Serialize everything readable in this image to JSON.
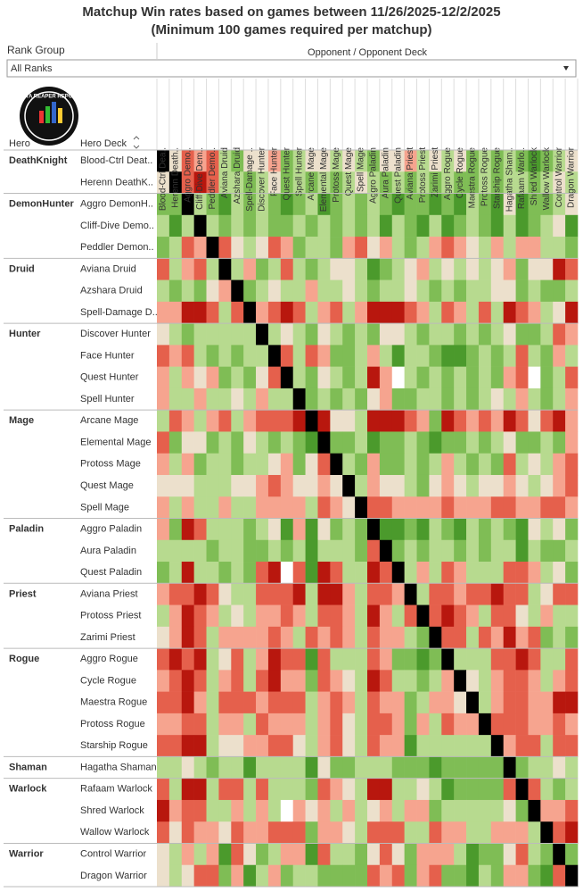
{
  "chart_data": {
    "type": "heatmap",
    "title": "Matchup Win rates based on games between 11/26/2025-12/2/2025",
    "subtitle": "(Minimum 100 games required per matchup)",
    "filter": {
      "label": "Rank Group",
      "value": "All Ranks"
    },
    "x_label": "Opponent / Opponent Deck",
    "logo_text": "DATA REAPER REPORT",
    "row_headers": [
      "Hero",
      "Hero Deck"
    ],
    "x": [
      "Blood-Ctrl Dea..",
      "Herenn Death..",
      "Aggro Demo..",
      "Cliff-Dive Dem..",
      "Peddler Demo..",
      "Aviana Druid",
      "Azshara Druid",
      "Spell-Damage ..",
      "Discover Hunter",
      "Face Hunter",
      "Quest Hunter",
      "Spell Hunter",
      "Arcane Mage",
      "Elemental Mage",
      "Protoss Mage",
      "Quest Mage",
      "Spell Mage",
      "Aggro Paladin",
      "Aura Paladin",
      "Quest Paladin",
      "Aviana Priest",
      "Protoss Priest",
      "Zarimi Priest",
      "Aggro Rogue",
      "Cycle Rogue",
      "Maestra Rogue",
      "Protoss Rogue",
      "Starship Rogue",
      "Hagatha Sham..",
      "Rafaam Warlo..",
      "Shred Warlock",
      "Wallow Warlock",
      "Control Warrior",
      "Dragon Warrior"
    ],
    "heroes": [
      {
        "name": "DeathKnight",
        "decks": [
          "Blood-Ctrl Deat..",
          "Herenn DeathK.."
        ]
      },
      {
        "name": "DemonHunter",
        "decks": [
          "Aggro DemonH..",
          "Cliff-Dive Demo..",
          "Peddler Demon.."
        ]
      },
      {
        "name": "Druid",
        "decks": [
          "Aviana Druid",
          "Azshara Druid",
          "Spell-Damage D.."
        ]
      },
      {
        "name": "Hunter",
        "decks": [
          "Discover Hunter",
          "Face Hunter",
          "Quest Hunter",
          "Spell Hunter"
        ]
      },
      {
        "name": "Mage",
        "decks": [
          "Arcane Mage",
          "Elemental Mage",
          "Protoss Mage",
          "Quest Mage",
          "Spell Mage"
        ]
      },
      {
        "name": "Paladin",
        "decks": [
          "Aggro Paladin",
          "Aura Paladin",
          "Quest Paladin"
        ]
      },
      {
        "name": "Priest",
        "decks": [
          "Aviana Priest",
          "Protoss Priest",
          "Zarimi Priest"
        ]
      },
      {
        "name": "Rogue",
        "decks": [
          "Aggro Rogue",
          "Cycle Rogue",
          "Maestra Rogue",
          "Protoss Rogue",
          "Starship Rogue"
        ]
      },
      {
        "name": "Shaman",
        "decks": [
          "Hagatha Shaman"
        ]
      },
      {
        "name": "Warlock",
        "decks": [
          "Rafaam Warlock",
          "Shred Warlock",
          "Wallow Warlock"
        ]
      },
      {
        "name": "Warrior",
        "decks": [
          "Control Warrior",
          "Dragon Warrior"
        ]
      }
    ],
    "values": [
      [
        null,
        50,
        44,
        47,
        44,
        53,
        57,
        50,
        50,
        47,
        57,
        53,
        50,
        50,
        53,
        50,
        53,
        57,
        50,
        50,
        47,
        53,
        50,
        53,
        50,
        57,
        53,
        57,
        53,
        57,
        62,
        57,
        53,
        50
      ],
      [
        50,
        null,
        44,
        38,
        44,
        53,
        53,
        57,
        53,
        50,
        57,
        53,
        57,
        53,
        57,
        53,
        50,
        53,
        57,
        53,
        57,
        53,
        57,
        53,
        57,
        57,
        53,
        57,
        53,
        53,
        57,
        53,
        50,
        53
      ],
      [
        57,
        57,
        null,
        53,
        57,
        62,
        53,
        57,
        53,
        57,
        62,
        57,
        53,
        62,
        57,
        53,
        57,
        53,
        57,
        62,
        57,
        57,
        62,
        57,
        62,
        53,
        57,
        62,
        50,
        62,
        57,
        57,
        53,
        50
      ],
      [
        53,
        62,
        53,
        null,
        53,
        57,
        53,
        57,
        53,
        57,
        57,
        53,
        57,
        53,
        57,
        53,
        57,
        53,
        62,
        53,
        57,
        62,
        53,
        62,
        57,
        53,
        57,
        62,
        53,
        62,
        57,
        53,
        50,
        62
      ],
      [
        57,
        53,
        44,
        47,
        null,
        44,
        50,
        53,
        50,
        44,
        47,
        57,
        53,
        53,
        57,
        47,
        44,
        50,
        47,
        53,
        57,
        53,
        47,
        44,
        47,
        50,
        53,
        47,
        53,
        47,
        47,
        53,
        53,
        57
      ],
      [
        44,
        53,
        47,
        44,
        53,
        null,
        53,
        47,
        57,
        53,
        44,
        53,
        57,
        53,
        50,
        50,
        53,
        62,
        57,
        53,
        50,
        47,
        53,
        50,
        53,
        50,
        53,
        50,
        47,
        57,
        50,
        50,
        38,
        44
      ],
      [
        53,
        57,
        53,
        57,
        50,
        47,
        null,
        57,
        53,
        50,
        53,
        53,
        47,
        53,
        53,
        50,
        53,
        57,
        53,
        53,
        50,
        53,
        57,
        53,
        57,
        53,
        53,
        50,
        50,
        57,
        53,
        57,
        57,
        53
      ],
      [
        47,
        47,
        38,
        38,
        44,
        53,
        44,
        null,
        47,
        44,
        38,
        44,
        53,
        47,
        44,
        53,
        47,
        38,
        38,
        38,
        44,
        47,
        53,
        44,
        47,
        53,
        44,
        53,
        38,
        44,
        47,
        53,
        50,
        38
      ],
      [
        50,
        53,
        57,
        53,
        53,
        53,
        53,
        53,
        null,
        53,
        50,
        53,
        57,
        50,
        53,
        57,
        53,
        57,
        50,
        50,
        53,
        57,
        53,
        53,
        57,
        53,
        57,
        53,
        50,
        57,
        57,
        53,
        44,
        47
      ],
      [
        44,
        47,
        44,
        53,
        57,
        53,
        57,
        53,
        53,
        null,
        44,
        53,
        44,
        47,
        57,
        57,
        53,
        47,
        53,
        62,
        53,
        53,
        57,
        62,
        62,
        57,
        53,
        57,
        53,
        44,
        53,
        57,
        47,
        53
      ],
      [
        47,
        53,
        47,
        50,
        47,
        57,
        53,
        57,
        50,
        44,
        null,
        53,
        57,
        50,
        53,
        57,
        53,
        38,
        47,
        null,
        53,
        57,
        53,
        57,
        53,
        57,
        53,
        57,
        47,
        44,
        null,
        57,
        53,
        44
      ],
      [
        47,
        53,
        53,
        47,
        53,
        53,
        50,
        53,
        47,
        53,
        53,
        null,
        57,
        53,
        57,
        53,
        57,
        50,
        47,
        57,
        57,
        53,
        53,
        57,
        53,
        57,
        53,
        50,
        53,
        47,
        53,
        57,
        53,
        47
      ],
      [
        53,
        44,
        47,
        53,
        47,
        44,
        53,
        47,
        44,
        44,
        44,
        38,
        null,
        38,
        50,
        50,
        53,
        38,
        38,
        38,
        44,
        47,
        57,
        38,
        44,
        47,
        44,
        47,
        38,
        44,
        50,
        44,
        38,
        47
      ],
      [
        44,
        57,
        50,
        50,
        57,
        53,
        57,
        50,
        53,
        57,
        53,
        57,
        62,
        null,
        57,
        57,
        53,
        62,
        57,
        57,
        53,
        57,
        62,
        57,
        57,
        53,
        57,
        53,
        50,
        57,
        57,
        53,
        57,
        47
      ],
      [
        47,
        53,
        47,
        57,
        53,
        53,
        57,
        53,
        53,
        50,
        47,
        57,
        50,
        44,
        null,
        53,
        57,
        47,
        57,
        57,
        53,
        57,
        53,
        47,
        53,
        57,
        53,
        57,
        44,
        53,
        50,
        53,
        47,
        44
      ],
      [
        50,
        50,
        50,
        53,
        53,
        53,
        50,
        50,
        47,
        44,
        47,
        50,
        50,
        47,
        50,
        null,
        53,
        47,
        50,
        50,
        53,
        57,
        50,
        47,
        50,
        53,
        50,
        50,
        47,
        50,
        53,
        50,
        47,
        44
      ],
      [
        47,
        53,
        47,
        53,
        53,
        47,
        53,
        53,
        47,
        47,
        47,
        47,
        53,
        44,
        47,
        50,
        null,
        44,
        44,
        47,
        47,
        47,
        47,
        44,
        47,
        47,
        47,
        44,
        44,
        47,
        47,
        44,
        44,
        47
      ],
      [
        47,
        57,
        38,
        44,
        53,
        53,
        53,
        57,
        53,
        50,
        62,
        47,
        62,
        50,
        57,
        53,
        57,
        null,
        62,
        62,
        57,
        62,
        53,
        57,
        62,
        53,
        57,
        53,
        57,
        62,
        50,
        53,
        50,
        57
      ],
      [
        53,
        53,
        53,
        53,
        57,
        53,
        53,
        57,
        57,
        53,
        57,
        53,
        62,
        53,
        53,
        53,
        57,
        44,
        null,
        57,
        53,
        57,
        53,
        53,
        57,
        53,
        57,
        53,
        53,
        62,
        53,
        57,
        57,
        53
      ],
      [
        57,
        53,
        38,
        53,
        53,
        57,
        53,
        57,
        44,
        38,
        null,
        44,
        62,
        38,
        44,
        53,
        53,
        38,
        44,
        null,
        53,
        47,
        53,
        44,
        47,
        53,
        53,
        53,
        44,
        44,
        47,
        53,
        50,
        57
      ],
      [
        47,
        44,
        44,
        38,
        44,
        50,
        53,
        53,
        44,
        44,
        44,
        38,
        53,
        38,
        38,
        47,
        53,
        44,
        44,
        47,
        null,
        53,
        44,
        44,
        47,
        44,
        44,
        38,
        44,
        44,
        53,
        50,
        44,
        44
      ],
      [
        53,
        47,
        38,
        44,
        47,
        53,
        50,
        53,
        47,
        47,
        44,
        47,
        53,
        44,
        44,
        47,
        53,
        38,
        47,
        53,
        44,
        null,
        44,
        38,
        44,
        47,
        53,
        44,
        44,
        50,
        53,
        47,
        53,
        53
      ],
      [
        50,
        47,
        38,
        44,
        53,
        47,
        47,
        47,
        47,
        44,
        47,
        53,
        44,
        47,
        44,
        47,
        53,
        44,
        47,
        47,
        53,
        57,
        null,
        44,
        44,
        53,
        44,
        47,
        38,
        47,
        44,
        57,
        53,
        57
      ],
      [
        44,
        38,
        44,
        38,
        53,
        50,
        44,
        53,
        47,
        38,
        44,
        44,
        62,
        44,
        53,
        53,
        53,
        44,
        47,
        57,
        57,
        62,
        57,
        null,
        53,
        53,
        53,
        44,
        44,
        38,
        44,
        53,
        53,
        44
      ],
      [
        47,
        44,
        38,
        44,
        53,
        47,
        44,
        53,
        44,
        38,
        47,
        47,
        57,
        44,
        47,
        50,
        53,
        38,
        44,
        53,
        53,
        57,
        53,
        47,
        null,
        50,
        53,
        47,
        44,
        44,
        47,
        53,
        47,
        44
      ],
      [
        44,
        44,
        38,
        47,
        53,
        44,
        44,
        44,
        47,
        44,
        44,
        44,
        53,
        47,
        44,
        47,
        53,
        44,
        47,
        47,
        57,
        53,
        47,
        47,
        50,
        null,
        53,
        47,
        44,
        44,
        47,
        47,
        38,
        38
      ],
      [
        47,
        47,
        44,
        44,
        53,
        47,
        47,
        53,
        44,
        47,
        47,
        47,
        53,
        47,
        44,
        50,
        53,
        44,
        44,
        47,
        57,
        47,
        53,
        44,
        47,
        47,
        null,
        44,
        44,
        44,
        47,
        47,
        44,
        47
      ],
      [
        44,
        44,
        38,
        38,
        53,
        50,
        50,
        47,
        47,
        44,
        44,
        50,
        53,
        47,
        44,
        50,
        53,
        44,
        47,
        47,
        62,
        53,
        53,
        53,
        53,
        53,
        53,
        null,
        47,
        44,
        44,
        53,
        44,
        44
      ],
      [
        53,
        53,
        50,
        53,
        57,
        53,
        53,
        62,
        53,
        53,
        53,
        53,
        62,
        50,
        57,
        57,
        53,
        53,
        53,
        57,
        57,
        57,
        62,
        57,
        57,
        57,
        57,
        57,
        null,
        57,
        53,
        53,
        50,
        53
      ],
      [
        44,
        53,
        38,
        38,
        53,
        44,
        44,
        53,
        44,
        53,
        53,
        53,
        57,
        44,
        47,
        50,
        53,
        38,
        38,
        53,
        53,
        50,
        53,
        62,
        57,
        57,
        57,
        57,
        44,
        null,
        44,
        53,
        57,
        53
      ],
      [
        38,
        47,
        44,
        44,
        53,
        53,
        47,
        53,
        47,
        53,
        null,
        47,
        50,
        47,
        53,
        47,
        53,
        50,
        47,
        53,
        47,
        47,
        57,
        53,
        53,
        53,
        53,
        53,
        50,
        57,
        null,
        47,
        47,
        44
      ],
      [
        44,
        50,
        44,
        47,
        47,
        50,
        44,
        47,
        47,
        44,
        44,
        44,
        57,
        47,
        47,
        50,
        53,
        44,
        44,
        44,
        53,
        53,
        44,
        47,
        47,
        53,
        53,
        47,
        47,
        47,
        53,
        null,
        44,
        38
      ],
      [
        50,
        53,
        47,
        53,
        47,
        62,
        44,
        50,
        57,
        53,
        47,
        47,
        62,
        44,
        53,
        53,
        57,
        50,
        44,
        50,
        57,
        47,
        47,
        47,
        53,
        62,
        57,
        57,
        50,
        44,
        53,
        57,
        null,
        57
      ],
      [
        50,
        53,
        50,
        44,
        44,
        57,
        47,
        62,
        53,
        47,
        57,
        53,
        53,
        57,
        57,
        57,
        57,
        44,
        47,
        44,
        57,
        47,
        44,
        57,
        57,
        62,
        53,
        57,
        47,
        47,
        57,
        62,
        44,
        null
      ]
    ]
  }
}
